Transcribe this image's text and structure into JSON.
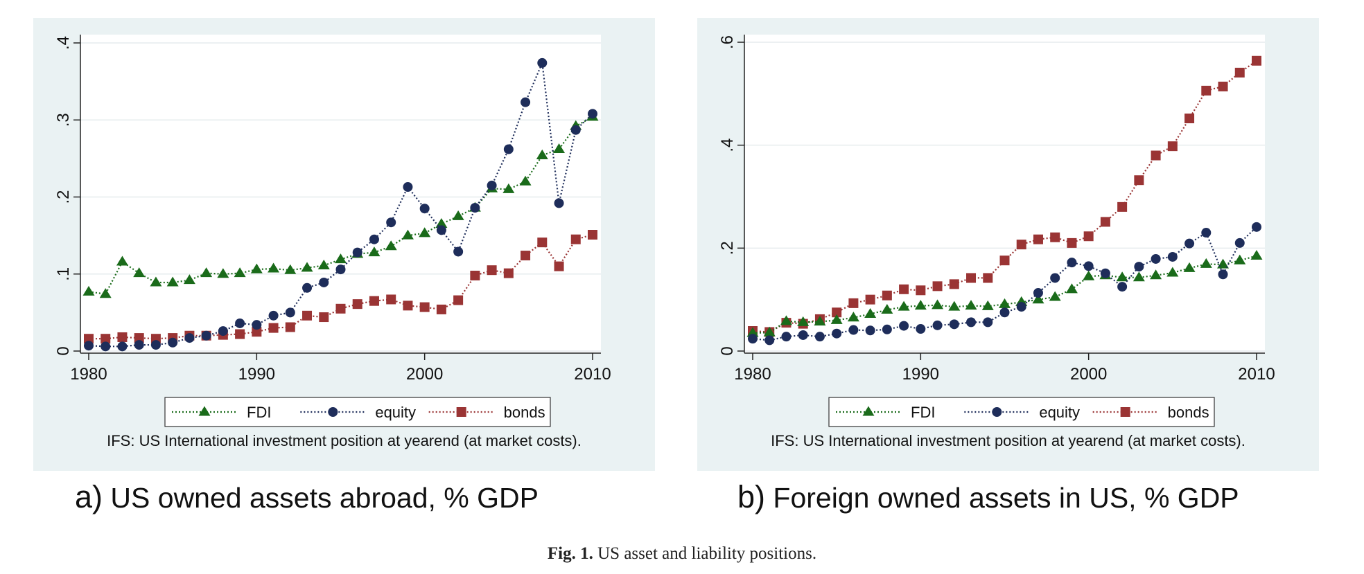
{
  "figure": {
    "caption_label": "Fig. 1.",
    "caption_text": " US asset and liability positions."
  },
  "colors": {
    "FDI": "#1a6b1a",
    "equity": "#1e2d5a",
    "bonds": "#9a3434",
    "panel_bg": "#eaf2f3",
    "grid": "#e6ecee"
  },
  "chart_data": [
    {
      "type": "line",
      "panel_letter": "a)",
      "title": "US owned assets abroad, % GDP",
      "note": "IFS: US International investment position at yearend (at market costs).",
      "xlabel": "",
      "ylabel": "",
      "xlim": [
        1980,
        2010
      ],
      "ylim": [
        0,
        0.4
      ],
      "xticks": [
        1980,
        1990,
        2000,
        2010
      ],
      "xtick_labels": [
        "1980",
        "1990",
        "2000",
        "2010"
      ],
      "yticks": [
        0,
        0.1,
        0.2,
        0.3,
        0.4
      ],
      "ytick_labels": [
        "0",
        ".1",
        ".2",
        ".3",
        ".4"
      ],
      "grid": true,
      "legend_position": "bottom",
      "x": [
        1980,
        1981,
        1982,
        1983,
        1984,
        1985,
        1986,
        1987,
        1988,
        1989,
        1990,
        1991,
        1992,
        1993,
        1994,
        1995,
        1996,
        1997,
        1998,
        1999,
        2000,
        2001,
        2002,
        2003,
        2004,
        2005,
        2006,
        2007,
        2008,
        2009,
        2010
      ],
      "series": [
        {
          "name": "FDI",
          "marker": "triangle",
          "values": [
            0.077,
            0.074,
            0.116,
            0.101,
            0.089,
            0.089,
            0.092,
            0.101,
            0.1,
            0.101,
            0.106,
            0.107,
            0.105,
            0.108,
            0.111,
            0.119,
            0.126,
            0.128,
            0.136,
            0.15,
            0.153,
            0.165,
            0.175,
            0.186,
            0.211,
            0.21,
            0.22,
            0.254,
            0.262,
            0.292,
            0.304
          ]
        },
        {
          "name": "equity",
          "marker": "circle",
          "values": [
            0.007,
            0.006,
            0.006,
            0.008,
            0.008,
            0.011,
            0.017,
            0.02,
            0.026,
            0.036,
            0.034,
            0.046,
            0.05,
            0.082,
            0.089,
            0.106,
            0.128,
            0.145,
            0.167,
            0.213,
            0.185,
            0.157,
            0.129,
            0.186,
            0.215,
            0.262,
            0.323,
            0.374,
            0.192,
            0.287,
            0.308
          ]
        },
        {
          "name": "bonds",
          "marker": "square",
          "values": [
            0.016,
            0.016,
            0.018,
            0.017,
            0.016,
            0.017,
            0.02,
            0.02,
            0.021,
            0.022,
            0.025,
            0.03,
            0.031,
            0.046,
            0.044,
            0.055,
            0.061,
            0.065,
            0.067,
            0.059,
            0.057,
            0.054,
            0.066,
            0.098,
            0.105,
            0.101,
            0.124,
            0.141,
            0.11,
            0.145,
            0.151
          ]
        }
      ]
    },
    {
      "type": "line",
      "panel_letter": "b)",
      "title": "Foreign owned assets in US, % GDP",
      "note": "IFS: US International investment position at yearend (at market costs).",
      "xlabel": "",
      "ylabel": "",
      "xlim": [
        1980,
        2010
      ],
      "ylim": [
        0,
        0.6
      ],
      "xticks": [
        1980,
        1990,
        2000,
        2010
      ],
      "xtick_labels": [
        "1980",
        "1990",
        "2000",
        "2010"
      ],
      "yticks": [
        0,
        0.2,
        0.4,
        0.6
      ],
      "ytick_labels": [
        "0",
        ".2",
        ".4",
        ".6"
      ],
      "grid": true,
      "legend_position": "bottom",
      "x": [
        1980,
        1981,
        1982,
        1983,
        1984,
        1985,
        1986,
        1987,
        1988,
        1989,
        1990,
        1991,
        1992,
        1993,
        1994,
        1995,
        1996,
        1997,
        1998,
        1999,
        2000,
        2001,
        2002,
        2003,
        2004,
        2005,
        2006,
        2007,
        2008,
        2009,
        2010
      ],
      "series": [
        {
          "name": "FDI",
          "marker": "triangle",
          "values": [
            0.035,
            0.036,
            0.058,
            0.056,
            0.057,
            0.06,
            0.065,
            0.072,
            0.08,
            0.086,
            0.088,
            0.089,
            0.086,
            0.088,
            0.087,
            0.091,
            0.095,
            0.1,
            0.105,
            0.12,
            0.145,
            0.147,
            0.143,
            0.143,
            0.147,
            0.152,
            0.161,
            0.169,
            0.168,
            0.176,
            0.185
          ]
        },
        {
          "name": "equity",
          "marker": "circle",
          "values": [
            0.024,
            0.021,
            0.028,
            0.031,
            0.028,
            0.034,
            0.041,
            0.04,
            0.042,
            0.049,
            0.043,
            0.05,
            0.052,
            0.056,
            0.056,
            0.075,
            0.086,
            0.113,
            0.142,
            0.172,
            0.165,
            0.151,
            0.125,
            0.164,
            0.179,
            0.183,
            0.209,
            0.23,
            0.149,
            0.21,
            0.241
          ]
        },
        {
          "name": "bonds",
          "marker": "square",
          "values": [
            0.039,
            0.037,
            0.055,
            0.053,
            0.062,
            0.075,
            0.093,
            0.1,
            0.108,
            0.12,
            0.118,
            0.126,
            0.13,
            0.142,
            0.142,
            0.176,
            0.207,
            0.217,
            0.221,
            0.21,
            0.223,
            0.251,
            0.28,
            0.332,
            0.38,
            0.398,
            0.452,
            0.506,
            0.514,
            0.541,
            0.564
          ]
        }
      ]
    }
  ]
}
